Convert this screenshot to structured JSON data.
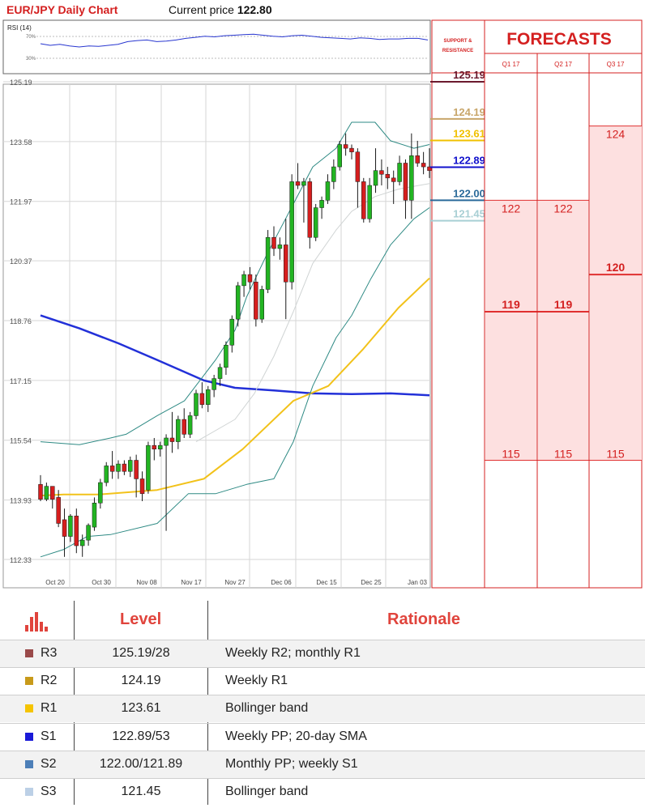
{
  "header": {
    "title": "EUR/JPY Daily Chart",
    "price_label": "Current price",
    "price_value": "122.80"
  },
  "rsi": {
    "label": "RSI (14)",
    "tick_high": "70%",
    "tick_low": "30%"
  },
  "sr_panel": {
    "title_line1": "SUPPORT &",
    "title_line2": "RESISTANCE",
    "levels": [
      {
        "value": "125.19",
        "price": 125.19,
        "color": "#6b1a2e"
      },
      {
        "value": "124.19",
        "price": 124.19,
        "color": "#c8a66a"
      },
      {
        "value": "123.61",
        "price": 123.61,
        "color": "#f0c000"
      },
      {
        "value": "122.89",
        "price": 122.89,
        "color": "#1010cc"
      },
      {
        "value": "122.00",
        "price": 122.0,
        "color": "#2a6a9a"
      },
      {
        "value": "121.45",
        "price": 121.45,
        "color": "#a8cfd4"
      }
    ]
  },
  "forecasts": {
    "title": "FORECASTS",
    "quarters": [
      "Q1 17",
      "Q2 17",
      "Q3 17"
    ],
    "columns": [
      {
        "top": "122",
        "mid": "119",
        "bottom": "115",
        "top_price": 122,
        "mid_price": 119,
        "bottom_price": 115
      },
      {
        "top": "122",
        "mid": "119",
        "bottom": "115",
        "top_price": 122,
        "mid_price": 119,
        "bottom_price": 115
      },
      {
        "top": "124",
        "mid": "120",
        "bottom": "115",
        "top_price": 124,
        "mid_price": 120,
        "bottom_price": 115
      }
    ],
    "colors": {
      "text": "#d42020",
      "fill": "#fde0e0",
      "line": "#e03030"
    }
  },
  "chart_data": {
    "type": "candlestick",
    "y_ticks": [
      "125.19",
      "123.58",
      "121.97",
      "120.37",
      "118.76",
      "117.15",
      "115.54",
      "113.93",
      "112.33"
    ],
    "x_ticks": [
      "Oct 20",
      "Oct 30",
      "Nov 08",
      "Nov 17",
      "Nov 27",
      "Dec 06",
      "Dec 15",
      "Dec 25",
      "Jan 03"
    ],
    "ylim": [
      112.33,
      125.19
    ],
    "candles": [
      {
        "o": 114.35,
        "h": 114.6,
        "l": 113.9,
        "c": 113.95
      },
      {
        "o": 113.95,
        "h": 114.4,
        "l": 113.9,
        "c": 114.3
      },
      {
        "o": 114.3,
        "h": 114.3,
        "l": 113.7,
        "c": 113.95
      },
      {
        "o": 114.0,
        "h": 114.2,
        "l": 113.2,
        "c": 113.3
      },
      {
        "o": 113.4,
        "h": 113.7,
        "l": 112.4,
        "c": 112.95
      },
      {
        "o": 112.95,
        "h": 113.55,
        "l": 112.8,
        "c": 113.5
      },
      {
        "o": 113.5,
        "h": 113.7,
        "l": 112.5,
        "c": 112.7
      },
      {
        "o": 112.7,
        "h": 113.0,
        "l": 112.4,
        "c": 112.85
      },
      {
        "o": 112.85,
        "h": 113.3,
        "l": 112.7,
        "c": 113.25
      },
      {
        "o": 113.2,
        "h": 114.0,
        "l": 113.1,
        "c": 113.85
      },
      {
        "o": 113.85,
        "h": 114.5,
        "l": 113.7,
        "c": 114.4
      },
      {
        "o": 114.4,
        "h": 114.95,
        "l": 114.3,
        "c": 114.85
      },
      {
        "o": 114.85,
        "h": 115.25,
        "l": 114.5,
        "c": 114.7
      },
      {
        "o": 114.7,
        "h": 115.0,
        "l": 114.5,
        "c": 114.9
      },
      {
        "o": 114.9,
        "h": 115.0,
        "l": 114.6,
        "c": 114.7
      },
      {
        "o": 114.7,
        "h": 115.1,
        "l": 114.55,
        "c": 115.0
      },
      {
        "o": 115.0,
        "h": 115.15,
        "l": 114.0,
        "c": 114.5
      },
      {
        "o": 114.5,
        "h": 114.7,
        "l": 113.9,
        "c": 114.1
      },
      {
        "o": 114.2,
        "h": 115.5,
        "l": 114.1,
        "c": 115.4
      },
      {
        "o": 115.4,
        "h": 115.6,
        "l": 115.0,
        "c": 115.3
      },
      {
        "o": 115.3,
        "h": 115.5,
        "l": 115.1,
        "c": 115.4
      },
      {
        "o": 115.4,
        "h": 115.7,
        "l": 113.1,
        "c": 115.6
      },
      {
        "o": 115.6,
        "h": 116.3,
        "l": 115.2,
        "c": 115.5
      },
      {
        "o": 115.5,
        "h": 116.2,
        "l": 115.3,
        "c": 116.1
      },
      {
        "o": 116.1,
        "h": 116.4,
        "l": 115.6,
        "c": 115.7
      },
      {
        "o": 115.7,
        "h": 116.3,
        "l": 115.6,
        "c": 116.2
      },
      {
        "o": 116.2,
        "h": 116.9,
        "l": 116.1,
        "c": 116.8
      },
      {
        "o": 116.8,
        "h": 117.1,
        "l": 116.4,
        "c": 116.5
      },
      {
        "o": 116.5,
        "h": 117.0,
        "l": 116.3,
        "c": 116.9
      },
      {
        "o": 116.9,
        "h": 117.3,
        "l": 116.7,
        "c": 117.2
      },
      {
        "o": 117.2,
        "h": 117.6,
        "l": 117.0,
        "c": 117.5
      },
      {
        "o": 117.5,
        "h": 118.2,
        "l": 117.3,
        "c": 118.1
      },
      {
        "o": 118.1,
        "h": 118.9,
        "l": 117.9,
        "c": 118.8
      },
      {
        "o": 118.8,
        "h": 119.8,
        "l": 118.6,
        "c": 119.7
      },
      {
        "o": 119.7,
        "h": 120.1,
        "l": 119.4,
        "c": 120.0
      },
      {
        "o": 120.0,
        "h": 120.2,
        "l": 119.6,
        "c": 119.8
      },
      {
        "o": 119.8,
        "h": 120.0,
        "l": 118.6,
        "c": 118.8
      },
      {
        "o": 118.8,
        "h": 119.7,
        "l": 118.7,
        "c": 119.6
      },
      {
        "o": 119.6,
        "h": 121.2,
        "l": 119.5,
        "c": 121.0
      },
      {
        "o": 121.0,
        "h": 121.3,
        "l": 120.5,
        "c": 120.7
      },
      {
        "o": 120.7,
        "h": 121.0,
        "l": 120.4,
        "c": 120.8
      },
      {
        "o": 120.8,
        "h": 121.5,
        "l": 118.8,
        "c": 119.8
      },
      {
        "o": 119.8,
        "h": 122.7,
        "l": 119.6,
        "c": 122.5
      },
      {
        "o": 122.5,
        "h": 123.0,
        "l": 122.3,
        "c": 122.4
      },
      {
        "o": 122.4,
        "h": 122.6,
        "l": 121.4,
        "c": 122.5
      },
      {
        "o": 122.5,
        "h": 122.6,
        "l": 120.7,
        "c": 121.0
      },
      {
        "o": 121.0,
        "h": 121.9,
        "l": 120.9,
        "c": 121.8
      },
      {
        "o": 121.8,
        "h": 122.1,
        "l": 121.5,
        "c": 122.0
      },
      {
        "o": 122.0,
        "h": 122.7,
        "l": 121.9,
        "c": 122.5
      },
      {
        "o": 122.5,
        "h": 123.1,
        "l": 122.3,
        "c": 122.9
      },
      {
        "o": 122.9,
        "h": 123.6,
        "l": 122.8,
        "c": 123.5
      },
      {
        "o": 123.5,
        "h": 123.8,
        "l": 123.2,
        "c": 123.4
      },
      {
        "o": 123.4,
        "h": 123.5,
        "l": 123.1,
        "c": 123.3
      },
      {
        "o": 123.3,
        "h": 123.4,
        "l": 121.8,
        "c": 122.5
      },
      {
        "o": 122.5,
        "h": 122.6,
        "l": 121.4,
        "c": 121.5
      },
      {
        "o": 121.5,
        "h": 122.6,
        "l": 121.4,
        "c": 122.4
      },
      {
        "o": 122.4,
        "h": 123.4,
        "l": 122.2,
        "c": 122.8
      },
      {
        "o": 122.8,
        "h": 123.1,
        "l": 122.4,
        "c": 122.7
      },
      {
        "o": 122.7,
        "h": 122.9,
        "l": 122.3,
        "c": 122.6
      },
      {
        "o": 122.6,
        "h": 122.8,
        "l": 121.9,
        "c": 122.5
      },
      {
        "o": 122.5,
        "h": 123.2,
        "l": 122.4,
        "c": 123.0
      },
      {
        "o": 123.0,
        "h": 123.1,
        "l": 121.5,
        "c": 122.0
      },
      {
        "o": 122.0,
        "h": 123.8,
        "l": 121.5,
        "c": 123.2
      },
      {
        "o": 123.2,
        "h": 123.6,
        "l": 122.9,
        "c": 123.0
      },
      {
        "o": 123.0,
        "h": 123.3,
        "l": 122.7,
        "c": 122.9
      },
      {
        "o": 122.9,
        "h": 123.4,
        "l": 122.6,
        "c": 122.8
      }
    ],
    "series": [
      {
        "key": "sma200",
        "color": "#2230d8",
        "width": 2.5,
        "values": [
          [
            0,
            118.9
          ],
          [
            0.1,
            118.55
          ],
          [
            0.2,
            118.15
          ],
          [
            0.3,
            117.7
          ],
          [
            0.42,
            117.15
          ],
          [
            0.5,
            116.95
          ],
          [
            0.6,
            116.88
          ],
          [
            0.7,
            116.8
          ],
          [
            0.8,
            116.78
          ],
          [
            0.9,
            116.8
          ],
          [
            1,
            116.75
          ]
        ]
      },
      {
        "key": "sma100",
        "color": "#f2c21a",
        "width": 2,
        "values": [
          [
            0,
            114.05
          ],
          [
            0.06,
            114.08
          ],
          [
            0.15,
            114.08
          ],
          [
            0.3,
            114.2
          ],
          [
            0.42,
            114.5
          ],
          [
            0.52,
            115.3
          ],
          [
            0.65,
            116.6
          ],
          [
            0.74,
            117.0
          ],
          [
            0.83,
            118.0
          ],
          [
            0.92,
            119.1
          ],
          [
            1,
            119.9
          ]
        ]
      },
      {
        "key": "boll_upper",
        "color": "#2e8a84",
        "width": 1,
        "values": [
          [
            0,
            115.5
          ],
          [
            0.1,
            115.42
          ],
          [
            0.18,
            115.6
          ],
          [
            0.22,
            115.7
          ],
          [
            0.3,
            116.2
          ],
          [
            0.37,
            116.6
          ],
          [
            0.45,
            117.7
          ],
          [
            0.5,
            118.5
          ],
          [
            0.53,
            119.4
          ],
          [
            0.58,
            120.5
          ],
          [
            0.63,
            121.5
          ],
          [
            0.7,
            122.9
          ],
          [
            0.76,
            123.4
          ],
          [
            0.8,
            124.1
          ],
          [
            0.86,
            124.1
          ],
          [
            0.9,
            123.6
          ],
          [
            0.96,
            123.4
          ],
          [
            1,
            123.5
          ]
        ]
      },
      {
        "key": "boll_lower",
        "color": "#2e8a84",
        "width": 1,
        "values": [
          [
            0,
            112.4
          ],
          [
            0.06,
            112.6
          ],
          [
            0.12,
            112.95
          ],
          [
            0.18,
            113.0
          ],
          [
            0.3,
            113.3
          ],
          [
            0.38,
            114.1
          ],
          [
            0.45,
            114.1
          ],
          [
            0.53,
            114.35
          ],
          [
            0.6,
            114.5
          ],
          [
            0.65,
            115.5
          ],
          [
            0.7,
            117.0
          ],
          [
            0.76,
            118.3
          ],
          [
            0.8,
            118.9
          ],
          [
            0.85,
            119.9
          ],
          [
            0.9,
            120.8
          ],
          [
            0.96,
            121.5
          ],
          [
            1,
            121.8
          ]
        ]
      },
      {
        "key": "boll_mid",
        "color": "#d0d4d4",
        "width": 1,
        "values": [
          [
            0.4,
            115.5
          ],
          [
            0.5,
            116.1
          ],
          [
            0.55,
            116.8
          ],
          [
            0.6,
            117.8
          ],
          [
            0.65,
            119.0
          ],
          [
            0.7,
            120.3
          ],
          [
            0.76,
            121.2
          ],
          [
            0.8,
            121.7
          ],
          [
            0.86,
            122.1
          ],
          [
            0.92,
            122.3
          ],
          [
            1,
            122.45
          ]
        ]
      }
    ],
    "rsi_values": [
      56,
      53,
      55,
      52,
      50,
      52,
      51,
      53,
      55,
      60,
      62,
      63,
      60,
      61,
      63,
      66,
      68,
      70,
      69,
      71,
      72,
      73,
      74,
      72,
      70,
      69,
      71,
      72,
      70,
      68,
      67,
      66,
      65,
      67,
      66,
      64,
      65,
      65,
      66,
      66,
      63
    ]
  },
  "table": {
    "icon": "bar-chart-icon",
    "headers": {
      "level": "Level",
      "rationale": "Rationale"
    },
    "rows": [
      {
        "name": "R3",
        "level": "125.19/28",
        "rationale": "Weekly R2; monthly R1",
        "color": "#9a4a4a"
      },
      {
        "name": "R2",
        "level": "124.19",
        "rationale": "Weekly R1",
        "color": "#c89a1a"
      },
      {
        "name": "R1",
        "level": "123.61",
        "rationale": "Bollinger band",
        "color": "#f5c400"
      },
      {
        "name": "S1",
        "level": "122.89/53",
        "rationale": "Weekly PP; 20-day SMA",
        "color": "#1a1ad8"
      },
      {
        "name": "S2",
        "level": "122.00/121.89",
        "rationale": "Monthly PP; weekly S1",
        "color": "#4d7fb8"
      },
      {
        "name": "S3",
        "level": "121.45",
        "rationale": "Bollinger band",
        "color": "#bcd0e6"
      }
    ]
  }
}
